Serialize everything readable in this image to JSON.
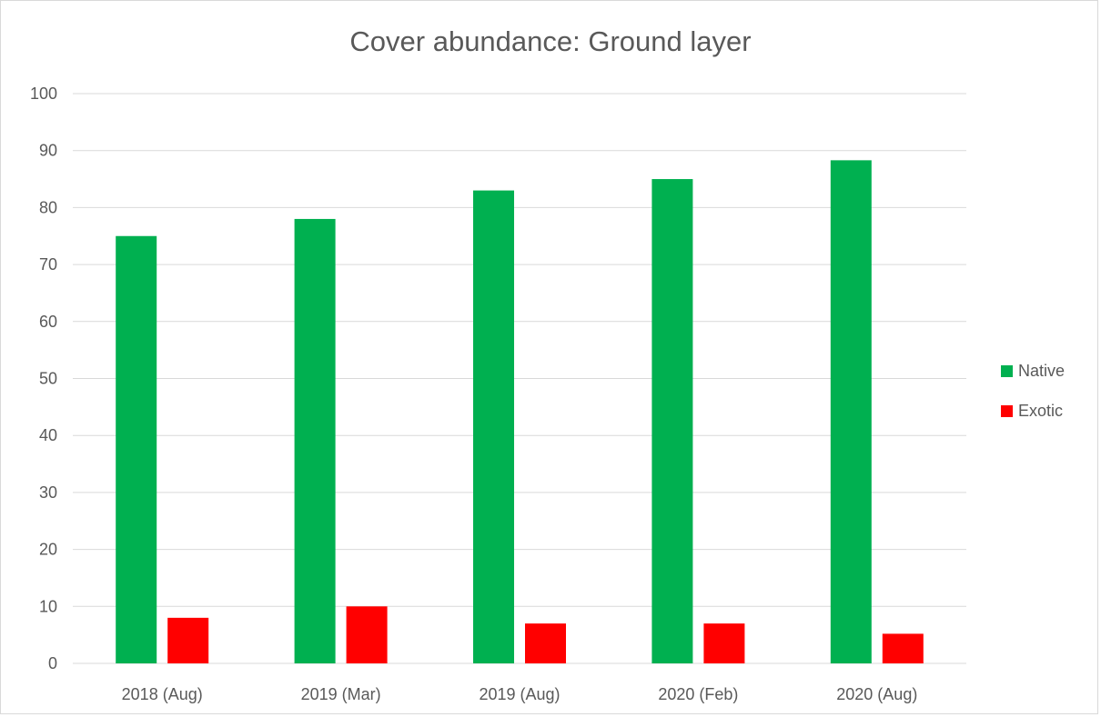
{
  "chart_data": {
    "type": "bar",
    "title": "Cover abundance: Ground layer",
    "categories": [
      "2018 (Aug)",
      "2019 (Mar)",
      "2019 (Aug)",
      "2020 (Feb)",
      "2020 (Aug)"
    ],
    "series": [
      {
        "name": "Native",
        "color": "#00b050",
        "values": [
          75,
          78,
          83,
          85,
          88.3
        ]
      },
      {
        "name": "Exotic",
        "color": "#ff0000",
        "values": [
          8,
          10,
          7,
          7,
          5.2
        ]
      }
    ],
    "ylim": [
      0,
      100
    ],
    "yticks": [
      "0",
      "10",
      "20",
      "30",
      "40",
      "50",
      "60",
      "70",
      "80",
      "90",
      "100"
    ],
    "grid": true,
    "legend": "right"
  }
}
